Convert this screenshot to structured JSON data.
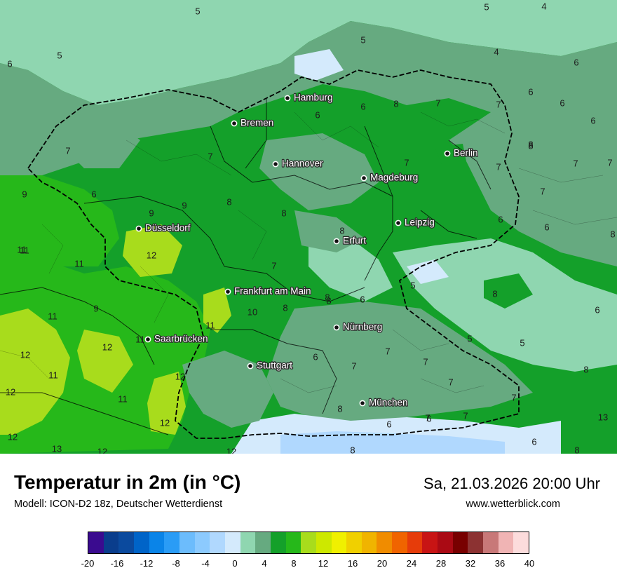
{
  "header": {
    "title": "Temperatur in 2m (in °C)",
    "subtitle": "Modell: ICON-D2 18z, Deutscher Wetterdienst",
    "datetime": "Sa, 21.03.2026 20:00 Uhr",
    "website": "www.wetterblick.com"
  },
  "colors": {
    "temp_4_6": "#8fd6b0",
    "temp_6_8": "#66aa80",
    "temp_8_10": "#14a02a",
    "temp_10_12": "#26b81a",
    "temp_12_14": "#a8dc1c",
    "temp_2_4": "#d4eafc"
  },
  "cities": [
    {
      "name": "Hamburg"
    },
    {
      "name": "Bremen"
    },
    {
      "name": "Berlin"
    },
    {
      "name": "Hannover"
    },
    {
      "name": "Magdeburg"
    },
    {
      "name": "Leipzig"
    },
    {
      "name": "Düsseldorf"
    },
    {
      "name": "Erfurt"
    },
    {
      "name": "Frankfurt am Main"
    },
    {
      "name": "Nürnberg"
    },
    {
      "name": "Saarbrücken"
    },
    {
      "name": "Stuttgart"
    },
    {
      "name": "München"
    }
  ],
  "map_values": [
    "5",
    "4",
    "5",
    "5",
    "4",
    "5",
    "6",
    "6",
    "6",
    "6",
    "6",
    "7",
    "7",
    "6",
    "6",
    "8",
    "7",
    "8",
    "7",
    "8",
    "9",
    "6",
    "7",
    "9",
    "8",
    "8",
    "7",
    "9",
    "7",
    "7",
    "8",
    "6",
    "7",
    "6",
    "8",
    "11",
    "11",
    "12",
    "11",
    "9",
    "10",
    "8",
    "8",
    "6",
    "5",
    "8",
    "6",
    "11",
    "12",
    "11",
    "5",
    "5",
    "12",
    "11",
    "12",
    "6",
    "7",
    "7",
    "7",
    "12",
    "11",
    "8",
    "7",
    "7",
    "8",
    "12",
    "12",
    "6",
    "12",
    "13",
    "12",
    "13",
    "8",
    "6",
    "8",
    "11",
    "7",
    "8",
    "6",
    "7",
    "7",
    "6"
  ],
  "legend": {
    "colors": [
      "#3a0b8f",
      "#0a3d8c",
      "#0b4a9e",
      "#0064c8",
      "#0a84e8",
      "#2a9cf6",
      "#6cbcfc",
      "#8ccafe",
      "#b0d8fe",
      "#d4eafc",
      "#8fd6b0",
      "#66aa80",
      "#14a02a",
      "#26b81a",
      "#a8dc1c",
      "#cde800",
      "#f0f000",
      "#f0d000",
      "#f0b400",
      "#f08c00",
      "#f06400",
      "#e63c0a",
      "#c81414",
      "#aa0a14",
      "#780000",
      "#8c3232",
      "#c87878",
      "#f0b4b4",
      "#fcdcdc"
    ],
    "labels": [
      "-20",
      "-16",
      "-12",
      "-8",
      "-4",
      "0",
      "4",
      "8",
      "12",
      "16",
      "20",
      "24",
      "28",
      "32",
      "36",
      "40"
    ]
  }
}
